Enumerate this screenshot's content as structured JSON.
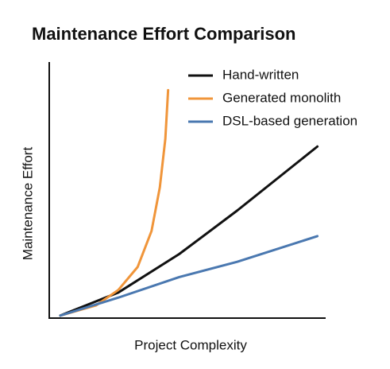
{
  "chart_data": {
    "type": "line",
    "title": "Maintenance Effort Comparison",
    "x_label": "Project Complexity",
    "y_label": "Maintenance Effort",
    "xlim": [
      0,
      10
    ],
    "ylim": [
      0,
      10
    ],
    "legend": "top-right",
    "series": [
      {
        "name": "Hand-written",
        "color": "#111111",
        "x": [
          0.4,
          2.5,
          4.7,
          6.8,
          9.7
        ],
        "values": [
          0.1,
          1.0,
          2.5,
          4.2,
          6.7
        ]
      },
      {
        "name": "Generated monolith",
        "color": "#f0953a",
        "x": [
          0.4,
          1.7,
          2.5,
          3.2,
          3.7,
          4.0,
          4.2,
          4.3
        ],
        "values": [
          0.1,
          0.5,
          1.1,
          2.0,
          3.4,
          5.1,
          7.0,
          8.9
        ]
      },
      {
        "name": "DSL-based generation",
        "color": "#4a78b0",
        "x": [
          0.4,
          2.5,
          4.7,
          6.8,
          9.7
        ],
        "values": [
          0.1,
          0.8,
          1.6,
          2.2,
          3.2
        ]
      }
    ]
  }
}
